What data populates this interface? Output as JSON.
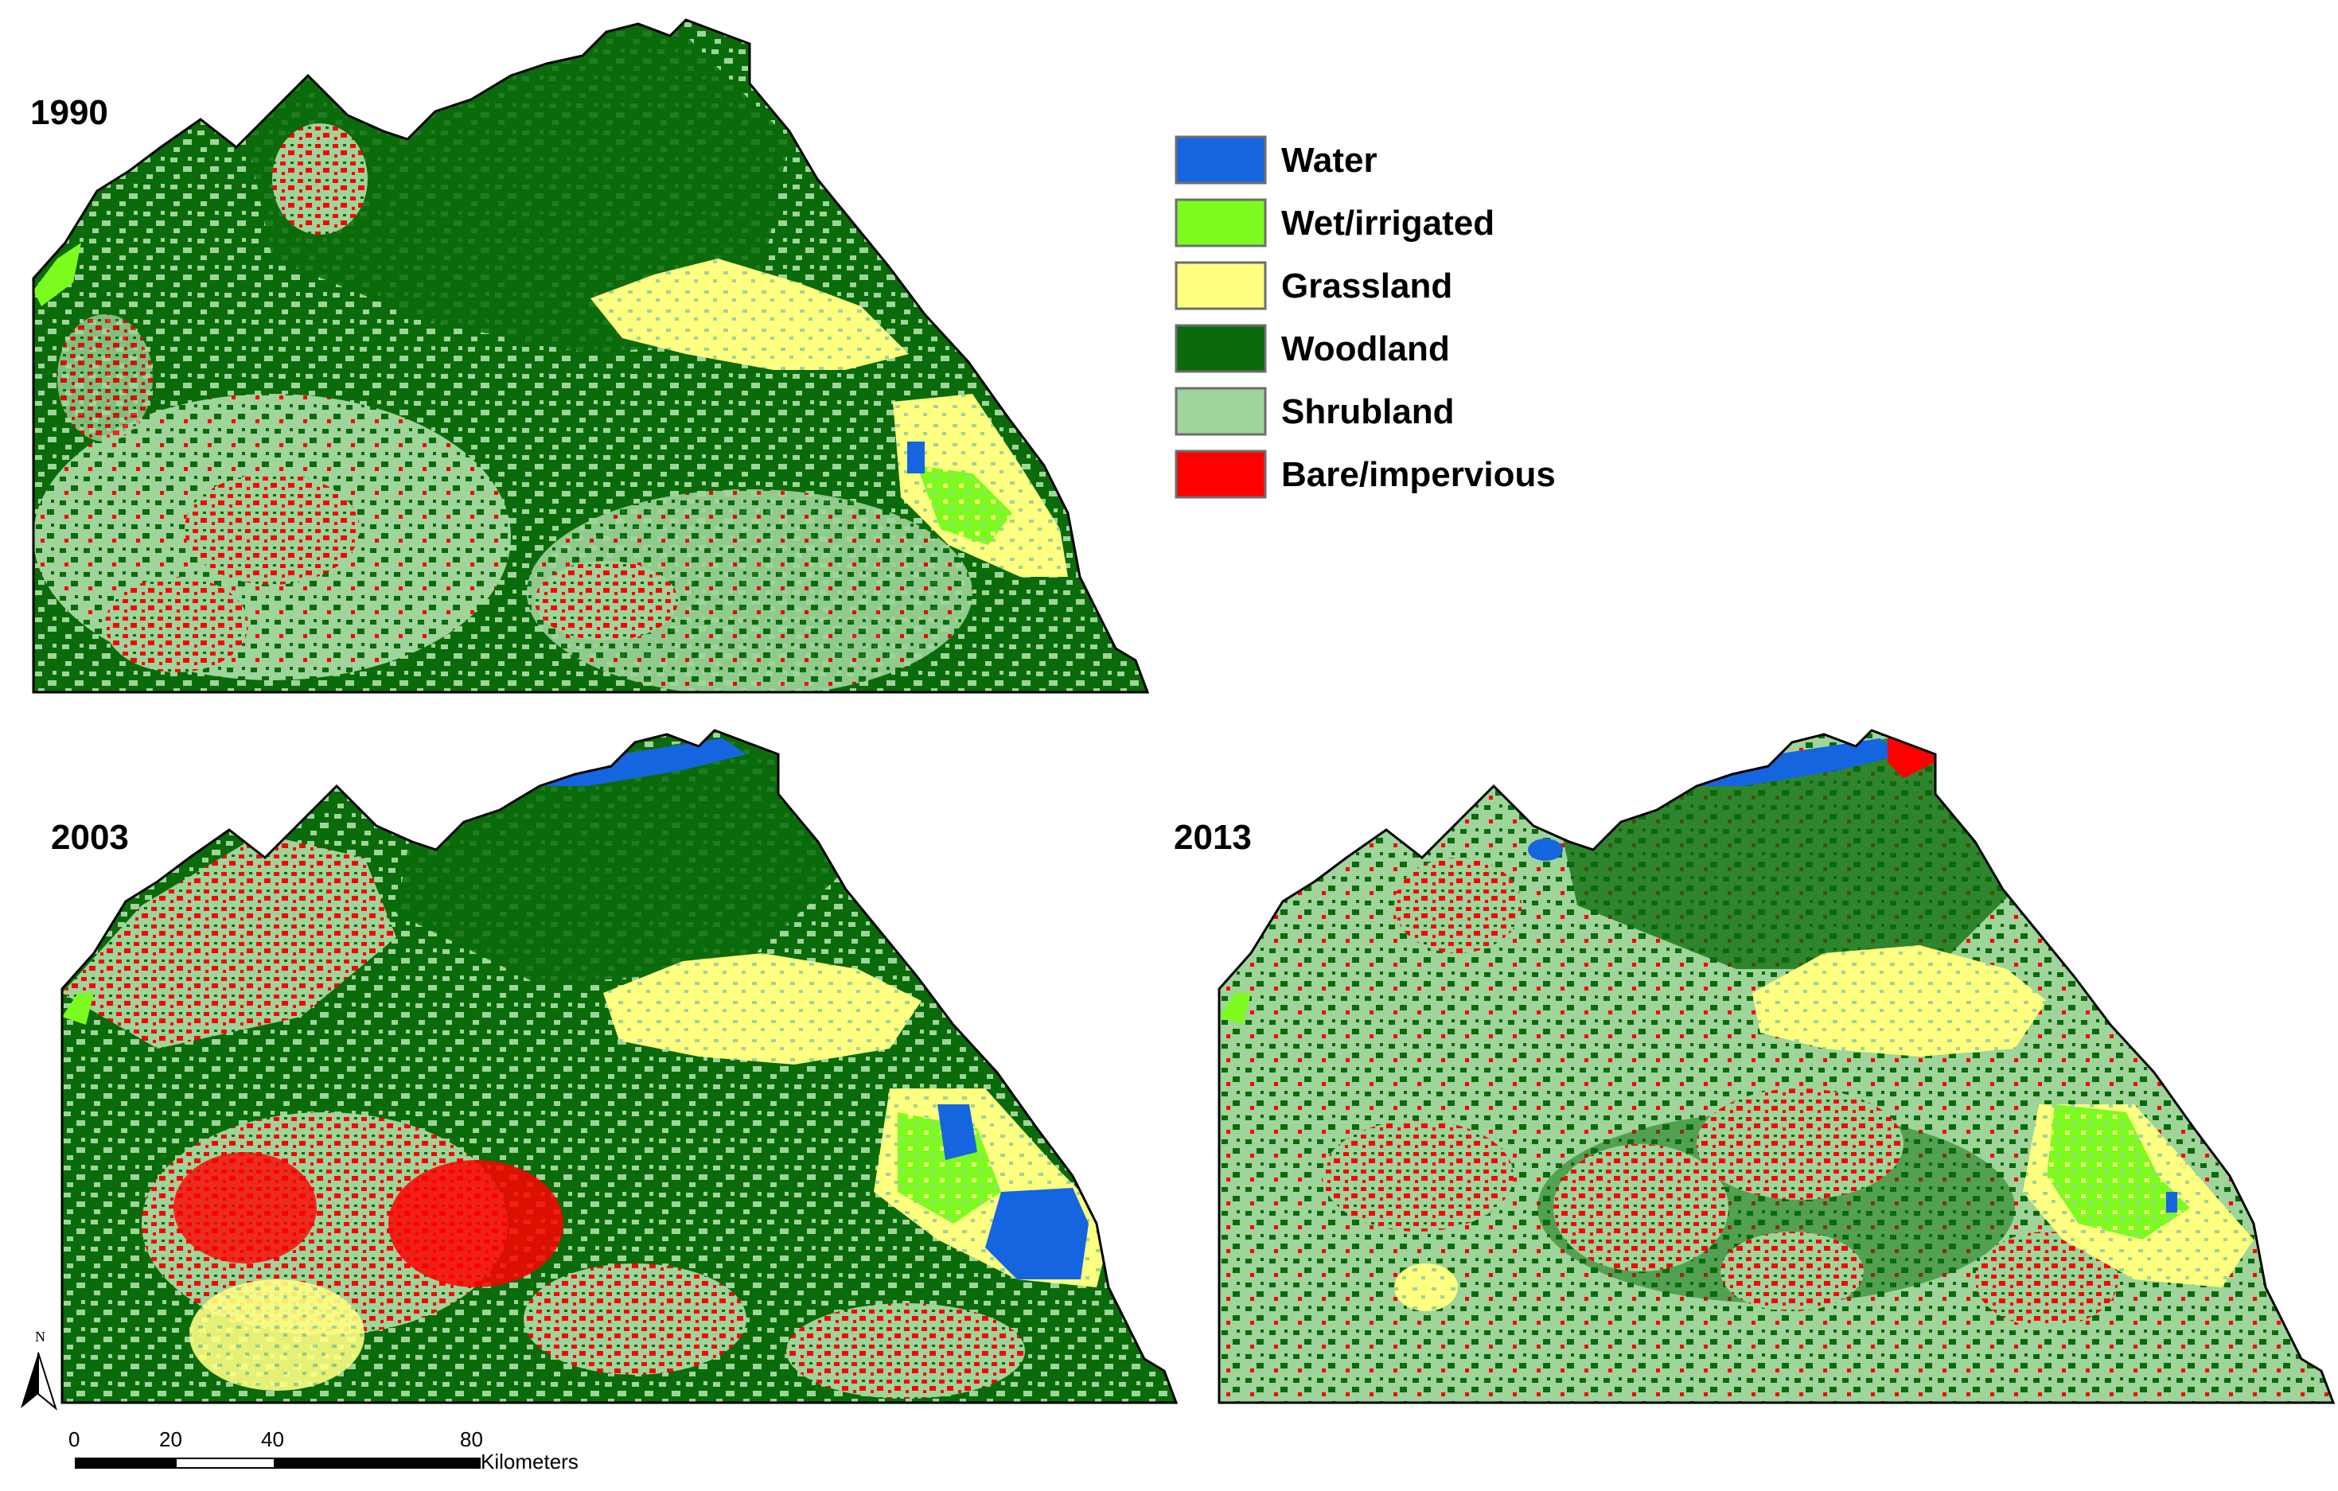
{
  "maps": [
    {
      "year": "1990"
    },
    {
      "year": "2003"
    },
    {
      "year": "2013"
    }
  ],
  "legend": {
    "items": [
      {
        "label": "Water",
        "color": "#1565e0"
      },
      {
        "label": "Wet/irrigated",
        "color": "#7cfc1e"
      },
      {
        "label": "Grassland",
        "color": "#ffff80"
      },
      {
        "label": "Woodland",
        "color": "#0a6b0a"
      },
      {
        "label": "Shrubland",
        "color": "#9fd49b"
      },
      {
        "label": "Bare/impervious",
        "color": "#ff0000"
      }
    ]
  },
  "scale_bar": {
    "ticks": [
      "0",
      "20",
      "40",
      "80"
    ],
    "unit": "Kilometers"
  },
  "north_arrow": {
    "label": "N"
  }
}
